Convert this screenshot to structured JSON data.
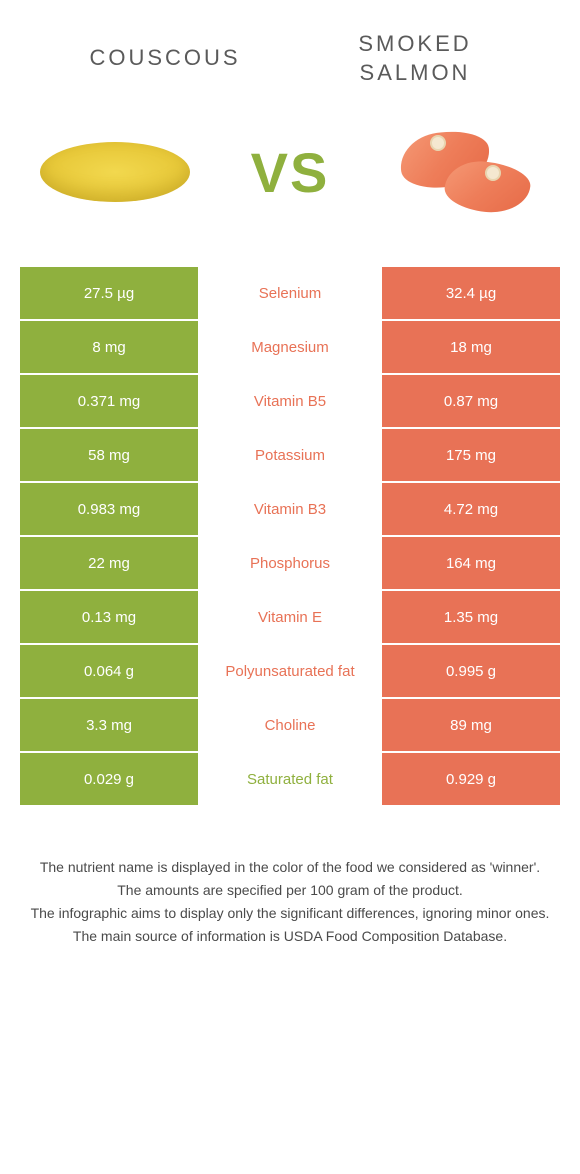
{
  "colors": {
    "left": "#8fb03e",
    "right": "#e87256",
    "mid_left": "#8fb03e",
    "mid_right": "#e87256"
  },
  "header": {
    "left": "COUSCOUS",
    "right_line1": "SMOKED",
    "right_line2": "SALMON",
    "vs": "VS"
  },
  "rows": [
    {
      "left": "27.5 µg",
      "mid": "Selenium",
      "right": "32.4 µg",
      "winner": "right"
    },
    {
      "left": "8 mg",
      "mid": "Magnesium",
      "right": "18 mg",
      "winner": "right"
    },
    {
      "left": "0.371 mg",
      "mid": "Vitamin B5",
      "right": "0.87 mg",
      "winner": "right"
    },
    {
      "left": "58 mg",
      "mid": "Potassium",
      "right": "175 mg",
      "winner": "right"
    },
    {
      "left": "0.983 mg",
      "mid": "Vitamin B3",
      "right": "4.72 mg",
      "winner": "right"
    },
    {
      "left": "22 mg",
      "mid": "Phosphorus",
      "right": "164 mg",
      "winner": "right"
    },
    {
      "left": "0.13 mg",
      "mid": "Vitamin E",
      "right": "1.35 mg",
      "winner": "right"
    },
    {
      "left": "0.064 g",
      "mid": "Polyunsaturated fat",
      "right": "0.995 g",
      "winner": "right"
    },
    {
      "left": "3.3 mg",
      "mid": "Choline",
      "right": "89 mg",
      "winner": "right"
    },
    {
      "left": "0.029 g",
      "mid": "Saturated fat",
      "right": "0.929 g",
      "winner": "left"
    }
  ],
  "footer": {
    "line1": "The nutrient name is displayed in the color of the food we considered as 'winner'.",
    "line2": "The amounts are specified per 100 gram of the product.",
    "line3": "The infographic aims to display only the significant differences, ignoring minor ones.",
    "line4": "The main source of information is USDA Food Composition Database."
  }
}
